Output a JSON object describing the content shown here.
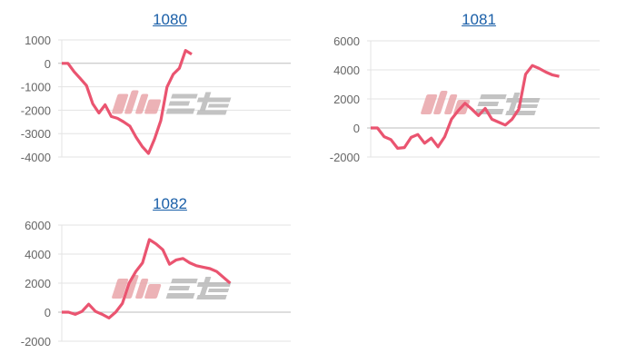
{
  "watermark": "みんレポ",
  "colors": {
    "line": "#ea5470",
    "grid": "#e3e3e3",
    "zero_line": "#bdbdbd",
    "title_link": "#1a5fa8",
    "watermark_red": "#e8a0a4",
    "watermark_gray": "#b5b5b5"
  },
  "chart_data": [
    {
      "type": "line",
      "title": "1080",
      "ylim": [
        -4000,
        1000
      ],
      "yticks": [
        "1000",
        "0",
        "-1000",
        "-2000",
        "-3000",
        "-4000"
      ],
      "ytick_values": [
        1000,
        0,
        -1000,
        -2000,
        -3000,
        -4000
      ],
      "grid": true,
      "xlim": [
        0,
        37
      ],
      "values": [
        0,
        0,
        -360,
        -650,
        -950,
        -1730,
        -2120,
        -1770,
        -2270,
        -2350,
        -2500,
        -2680,
        -3150,
        -3550,
        -3850,
        -3220,
        -2440,
        -1010,
        -470,
        -210,
        550,
        390
      ]
    },
    {
      "type": "line",
      "title": "1081",
      "ylim": [
        -2000,
        6000
      ],
      "yticks": [
        "6000",
        "4000",
        "2000",
        "0",
        "-2000"
      ],
      "ytick_values": [
        6000,
        4000,
        2000,
        0,
        -2000
      ],
      "grid": true,
      "xlim": [
        0,
        34
      ],
      "values": [
        0,
        0,
        -600,
        -800,
        -1400,
        -1350,
        -650,
        -450,
        -1050,
        -700,
        -1300,
        -600,
        600,
        1200,
        1700,
        1300,
        850,
        1350,
        600,
        400,
        200,
        600,
        1300,
        3700,
        4300,
        4100,
        3850,
        3650,
        3550
      ]
    },
    {
      "type": "line",
      "title": "1082",
      "ylim": [
        -2000,
        6000
      ],
      "yticks": [
        "6000",
        "4000",
        "2000",
        "0",
        "-2000"
      ],
      "ytick_values": [
        6000,
        4000,
        2000,
        0,
        -2000
      ],
      "grid": true,
      "xlim": [
        0,
        34
      ],
      "values": [
        0,
        0,
        -150,
        50,
        550,
        50,
        -150,
        -400,
        0,
        600,
        2000,
        2800,
        3400,
        5000,
        4700,
        4300,
        3300,
        3600,
        3700,
        3400,
        3200,
        3100,
        3000,
        2800,
        2400,
        2000
      ]
    }
  ]
}
